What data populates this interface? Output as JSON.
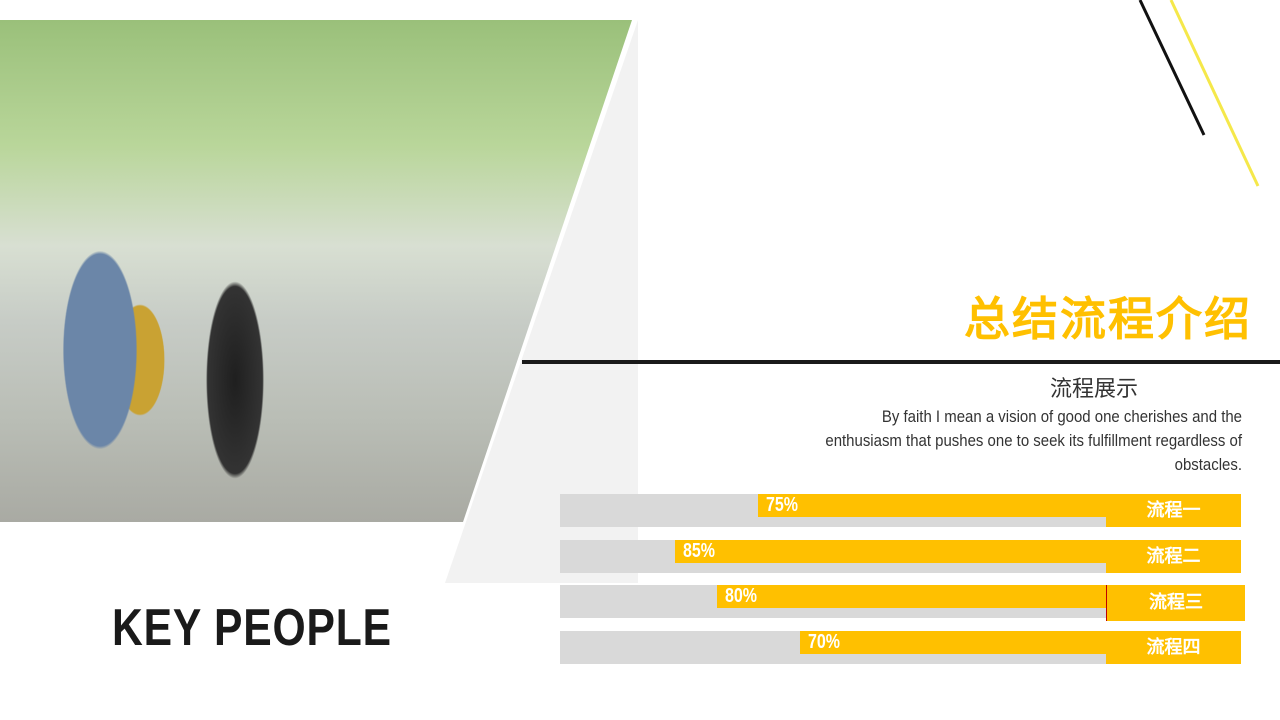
{
  "title": "总结流程介绍",
  "subtitle": "流程展示",
  "paragraph": "By faith I mean a vision of good one cherishes and the enthusiasm that pushes one to seek its fulfillment regardless of obstacles.",
  "footer_title": "KEY PEOPLE",
  "accent_color": "#ffc000",
  "processes": [
    {
      "label": "流程一",
      "percent_text": "75%",
      "percent": 75
    },
    {
      "label": "流程二",
      "percent_text": "85%",
      "percent": 85
    },
    {
      "label": "流程三",
      "percent_text": "80%",
      "percent": 80
    },
    {
      "label": "流程四",
      "percent_text": "70%",
      "percent": 70
    }
  ]
}
